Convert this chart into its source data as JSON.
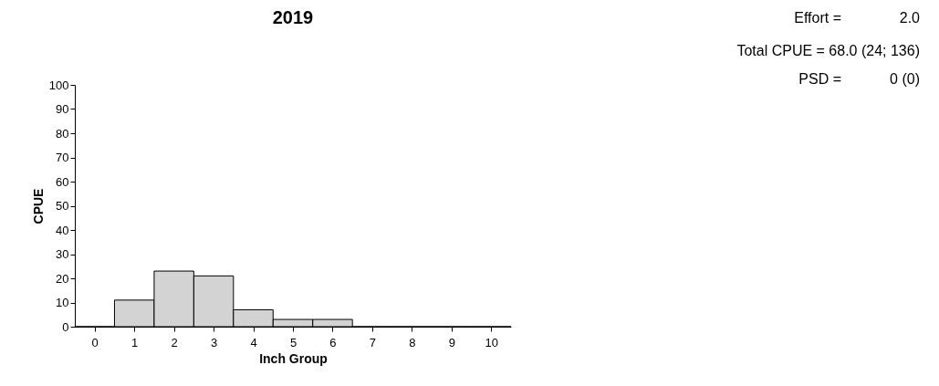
{
  "chart_data": {
    "type": "histogram",
    "title": "2019",
    "xlabel": "Inch Group",
    "ylabel": "CPUE",
    "bins": [
      -0.5,
      0.5,
      1.5,
      2.5,
      3.5,
      4.5,
      5.5,
      6.5,
      7.5,
      8.5,
      9.5,
      10.5
    ],
    "values": [
      0,
      11,
      23,
      21,
      7,
      3,
      3,
      0,
      0,
      0,
      0
    ],
    "color": "#d3d3d3",
    "xlim": [
      -0.5,
      10.5
    ],
    "xticks": [
      0,
      1,
      2,
      3,
      4,
      5,
      6,
      7,
      8,
      9,
      10
    ],
    "ylim": [
      0,
      100
    ],
    "yticks": [
      0,
      10,
      20,
      30,
      40,
      50,
      60,
      70,
      80,
      90,
      100
    ],
    "grid": false,
    "annotations": [
      "Effort =",
      "2.0",
      "Total CPUE = 68.0 (24; 136)",
      "PSD =",
      "0 (0)"
    ]
  }
}
